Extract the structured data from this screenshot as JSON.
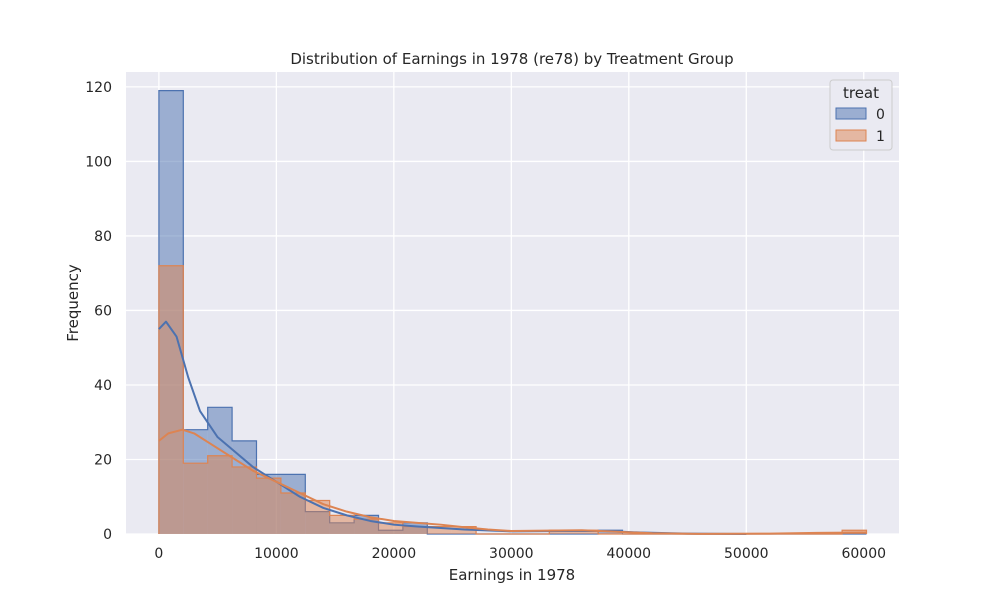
{
  "chart_data": {
    "type": "histogram",
    "title": "Distribution of Earnings in 1978 (re78) by Treatment Group",
    "xlabel": "Earnings in 1978",
    "ylabel": "Frequency",
    "xlim": [
      -2800,
      63000
    ],
    "ylim": [
      0,
      124
    ],
    "xticks": [
      0,
      10000,
      20000,
      30000,
      40000,
      50000,
      60000
    ],
    "yticks": [
      0,
      20,
      40,
      60,
      80,
      100,
      120
    ],
    "grid": true,
    "legend": {
      "title": "treat",
      "placement": "top-right"
    },
    "bin_edges": [
      0,
      2077,
      4154,
      6231,
      8308,
      10385,
      12462,
      14539,
      16616,
      18693,
      20770,
      22847,
      24924,
      27001,
      29078,
      31155,
      33232,
      35309,
      37386,
      39463,
      41540,
      43617,
      45694,
      47771,
      49848,
      51925,
      54002,
      56079,
      58156,
      60233
    ],
    "series": [
      {
        "name": "0",
        "color": "#4c72b0",
        "counts": [
          119,
          28,
          34,
          25,
          16,
          16,
          6,
          3,
          5,
          1,
          3,
          0,
          0,
          0,
          0,
          0,
          0,
          0,
          1,
          0,
          0,
          0,
          0,
          0,
          0,
          0,
          0,
          0,
          0
        ],
        "kde": [
          [
            0,
            55
          ],
          [
            600,
            57
          ],
          [
            1500,
            53
          ],
          [
            2500,
            42
          ],
          [
            3500,
            33
          ],
          [
            5000,
            26
          ],
          [
            6500,
            22
          ],
          [
            8000,
            18
          ],
          [
            10000,
            14
          ],
          [
            12000,
            10
          ],
          [
            14000,
            7
          ],
          [
            16000,
            5
          ],
          [
            18000,
            3.5
          ],
          [
            20000,
            2.5
          ],
          [
            22000,
            2
          ],
          [
            24000,
            1.6
          ],
          [
            26000,
            1.2
          ],
          [
            30000,
            0.7
          ],
          [
            34000,
            0.8
          ],
          [
            38000,
            0.8
          ],
          [
            41000,
            0.4
          ],
          [
            45000,
            0.1
          ],
          [
            50000,
            0
          ]
        ]
      },
      {
        "name": "1",
        "color": "#dd8452",
        "counts": [
          72,
          19,
          21,
          18,
          15,
          11,
          9,
          5,
          4,
          3,
          2,
          2,
          2,
          0,
          0,
          0,
          1,
          1,
          0,
          0,
          0,
          0,
          0,
          0,
          0,
          0,
          0,
          0,
          1
        ],
        "kde": [
          [
            0,
            25
          ],
          [
            800,
            27
          ],
          [
            2000,
            28
          ],
          [
            3000,
            27
          ],
          [
            4500,
            24
          ],
          [
            6000,
            21
          ],
          [
            8000,
            17
          ],
          [
            10000,
            14
          ],
          [
            12000,
            11
          ],
          [
            14000,
            8
          ],
          [
            16000,
            6
          ],
          [
            18000,
            4.5
          ],
          [
            20000,
            3.5
          ],
          [
            22000,
            3
          ],
          [
            24000,
            2.5
          ],
          [
            26000,
            1.8
          ],
          [
            28000,
            1.2
          ],
          [
            30000,
            0.8
          ],
          [
            33000,
            0.9
          ],
          [
            36000,
            1
          ],
          [
            39000,
            0.6
          ],
          [
            42000,
            0.2
          ],
          [
            46000,
            0.05
          ],
          [
            52000,
            0.1
          ],
          [
            56000,
            0.3
          ],
          [
            60233,
            0.4
          ]
        ]
      }
    ]
  }
}
